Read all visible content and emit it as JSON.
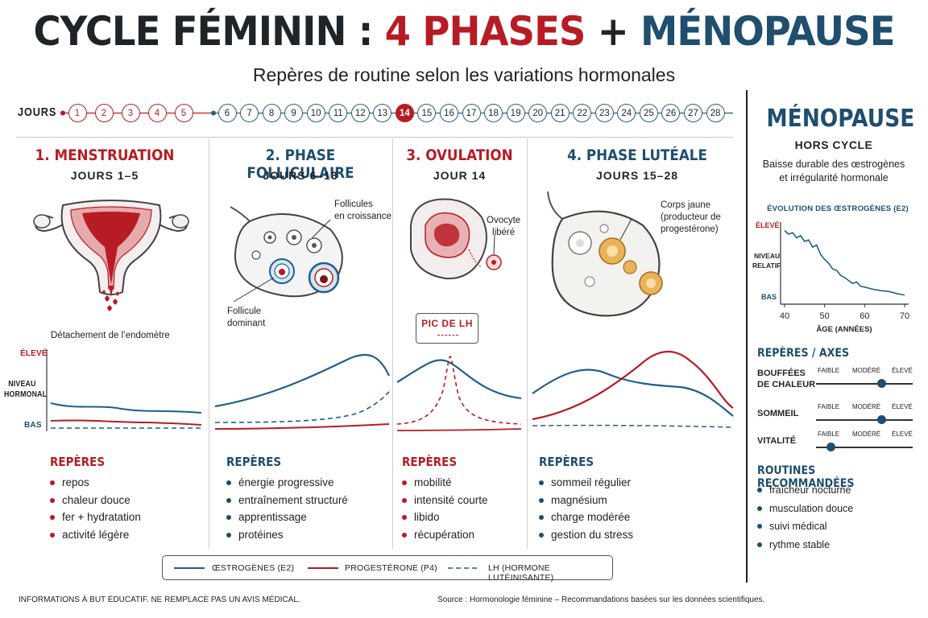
{
  "header": {
    "title_part1": "CYCLE FÉMININ : ",
    "title_part2": "4 PHASES",
    "title_part3": " + ",
    "title_part4": "MÉNOPAUSE",
    "subtitle": "Repères de routine selon les variations hormonales"
  },
  "days": {
    "label": "JOURS",
    "items": [
      "1",
      "2",
      "3",
      "4",
      "5",
      "6",
      "7",
      "8",
      "9",
      "10",
      "11",
      "12",
      "13",
      "14",
      "15",
      "16",
      "17",
      "18",
      "19",
      "20",
      "21",
      "22",
      "23",
      "24",
      "25",
      "26",
      "27",
      "28"
    ],
    "highlighted": "14"
  },
  "phases": [
    {
      "title": "1. MENSTRUATION",
      "days": "JOURS 1–5",
      "notes": [
        "Détachement de l’endomètre"
      ],
      "reperes_title": "REPÈRES",
      "reperes": [
        "repos",
        "chaleur douce",
        "fer + hydratation",
        "activité légère"
      ]
    },
    {
      "title": "2. PHASE FOLLICULAIRE",
      "days": "JOURS 6–13",
      "notes": [
        "Follicules",
        "en croissance",
        "Follicule",
        "dominant"
      ],
      "reperes_title": "REPÈRES",
      "reperes": [
        "énergie progressive",
        "entraînement structuré",
        "apprentissage",
        "protéines"
      ]
    },
    {
      "title": "3. OVULATION",
      "days": "JOUR 14",
      "notes": [
        "Ovocyte",
        "libéré"
      ],
      "peak_label": "PIC DE LH",
      "reperes_title": "REPÈRES",
      "reperes": [
        "mobilité",
        "intensité courte",
        "libido",
        "récupération"
      ]
    },
    {
      "title": "4. PHASE LUTÉALE",
      "days": "JOURS 15–28",
      "notes": [
        "Corps jaune",
        "(producteur de",
        "progestérone)"
      ],
      "reperes_title": "REPÈRES",
      "reperes": [
        "sommeil régulier",
        "magnésium",
        "charge modérée",
        "gestion du stress"
      ]
    }
  ],
  "hormone_axis": {
    "high": "ÉLEVÉ",
    "label_line1": "NIVEAU",
    "label_line2": "HORMONAL",
    "low": "BAS"
  },
  "legend": {
    "items": [
      {
        "label": "ŒSTROGÈNES (E2)",
        "color": "#1f5f8b",
        "style": "solid"
      },
      {
        "label": "PROGESTÉRONE (P4)",
        "color": "#b71c24",
        "style": "solid"
      },
      {
        "label": "LH (HORMONE LUTÉINISANTE)",
        "color": "#1f5f8b",
        "style": "dashed"
      }
    ]
  },
  "menopause": {
    "title": "MÉNOPAUSE",
    "subtitle": "HORS CYCLE",
    "description_line1": "Baisse durable des œstrogènes",
    "description_line2": "et irrégularité hormonale",
    "chart_title": "ÉVOLUTION DES ŒSTROGÈNES (E2)",
    "axes_title": "REPÈRES / AXES",
    "scale": [
      "FAIBLE",
      "MODÉRÉ",
      "ÉLEVÉ"
    ],
    "sliders": [
      {
        "label_line1": "BOUFFÉES",
        "label_line2": "DE CHALEUR",
        "level": 0.68
      },
      {
        "label_line1": "SOMMEIL",
        "label_line2": "",
        "level": 0.68
      },
      {
        "label_line1": "VITALITÉ",
        "label_line2": "",
        "level": 0.15
      }
    ],
    "routines_title": "ROUTINES RECOMMANDÉES",
    "routines": [
      "fraîcheur nocturne",
      "musculation douce",
      "suivi médical",
      "rythme stable"
    ]
  },
  "chart_data": {
    "type": "line",
    "title": "ÉVOLUTION DES ŒSTROGÈNES (E2)",
    "xlabel": "ÂGE (ANNÉES)",
    "ylabel_line1": "NIVEAU",
    "ylabel_line2": "RELATIF",
    "y_high_label": "ÉLEVÉ",
    "y_low_label": "BAS",
    "x_ticks": [
      "40",
      "50",
      "60",
      "70"
    ],
    "xlim": [
      40,
      70
    ],
    "ylim": [
      0,
      1
    ],
    "x": [
      40,
      41,
      42,
      43,
      44,
      45,
      46,
      47,
      48,
      49,
      50,
      51,
      52,
      53,
      54,
      55,
      56,
      57,
      58,
      59,
      60,
      62,
      64,
      66,
      68,
      70
    ],
    "values": [
      0.95,
      0.9,
      0.92,
      0.85,
      0.88,
      0.8,
      0.82,
      0.72,
      0.75,
      0.62,
      0.55,
      0.5,
      0.42,
      0.4,
      0.33,
      0.3,
      0.26,
      0.22,
      0.24,
      0.18,
      0.17,
      0.14,
      0.12,
      0.11,
      0.08,
      0.06
    ]
  },
  "footer": {
    "disclaimer": "INFORMATIONS À BUT ÉDUCATIF. NE REMPLACE PAS UN AVIS MÉDICAL.",
    "source": "Source : Hormonologie féminine – Recommandations basées sur les données scientifiques."
  }
}
